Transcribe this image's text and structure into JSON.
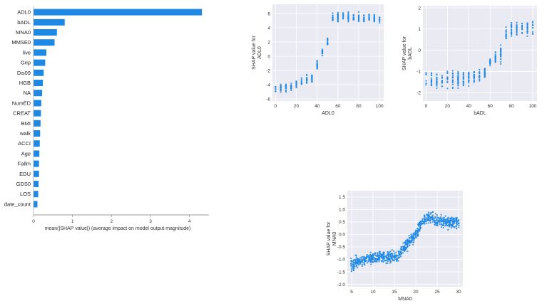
{
  "colors": {
    "bar": "#1e88e5",
    "dot": "#1e88e5",
    "panel_bg": "#eaeaf2",
    "grid": "#ffffff"
  },
  "chart_data": [
    {
      "type": "bar",
      "orientation": "horizontal",
      "categories": [
        "ADL0",
        "bADL",
        "MNA0",
        "MMSE0",
        "live",
        "Grip",
        "Dis09",
        "HGB",
        "NA",
        "NumED",
        "CREAT",
        "BMI",
        "walk",
        "ACCI",
        "Age",
        "Fallm",
        "EDU",
        "GDS0",
        "LOS",
        "date_count"
      ],
      "values": [
        4.32,
        0.8,
        0.6,
        0.54,
        0.33,
        0.3,
        0.26,
        0.24,
        0.22,
        0.2,
        0.19,
        0.18,
        0.17,
        0.16,
        0.15,
        0.14,
        0.14,
        0.13,
        0.12,
        0.1
      ],
      "xlabel": "mean(|SHAP value|) (average impact on model output magnitude)",
      "xticks": [
        "0",
        "1",
        "2",
        "3",
        "4"
      ],
      "xlim": [
        0,
        4.5
      ],
      "grid": false
    },
    {
      "type": "scatter",
      "xlabel": "ADL0",
      "ylabel": [
        "SHAP value for",
        "ADL0"
      ],
      "xlim": [
        -3,
        104
      ],
      "ylim": [
        -6.3,
        7.3
      ],
      "xticks": [
        0,
        20,
        40,
        60,
        80,
        100
      ],
      "yticks": [
        -6,
        -4,
        -2,
        0,
        2,
        4,
        6
      ],
      "grid": true,
      "trend_x": [
        0,
        5,
        10,
        15,
        20,
        25,
        30,
        35,
        40,
        45,
        50,
        55,
        60,
        65,
        70,
        75,
        80,
        85,
        90,
        95,
        100
      ],
      "trend_y": [
        -4.7,
        -4.5,
        -4.4,
        -4.2,
        -3.9,
        -3.6,
        -3.3,
        -3.0,
        -1.2,
        0.5,
        2.0,
        5.4,
        5.6,
        5.6,
        5.5,
        5.4,
        5.4,
        5.3,
        5.3,
        5.3,
        5.2
      ],
      "spread": 0.6
    },
    {
      "type": "scatter",
      "xlabel": "bADL",
      "ylabel": [
        "SHAP value for",
        "bADL"
      ],
      "xlim": [
        -3,
        104
      ],
      "ylim": [
        -2.4,
        2.1
      ],
      "xticks": [
        0,
        20,
        40,
        60,
        80,
        100
      ],
      "yticks": [
        -2,
        -1,
        0,
        1,
        2
      ],
      "grid": true,
      "trend_x": [
        0,
        5,
        10,
        15,
        20,
        25,
        30,
        35,
        40,
        45,
        50,
        55,
        60,
        65,
        70,
        75,
        80,
        85,
        90,
        95,
        100
      ],
      "trend_y": [
        -1.45,
        -1.45,
        -1.45,
        -1.45,
        -1.4,
        -1.4,
        -1.35,
        -1.35,
        -1.3,
        -1.3,
        -1.2,
        -1.1,
        -0.6,
        -0.4,
        -0.2,
        0.8,
        1.0,
        1.0,
        1.0,
        1.0,
        1.0
      ],
      "spread": 0.35
    },
    {
      "type": "scatter",
      "xlabel": "MNA0",
      "ylabel": [
        "SHAP value for",
        "MNA0"
      ],
      "xlim": [
        4,
        31
      ],
      "ylim": [
        -2.1,
        1.75
      ],
      "xticks": [
        5,
        10,
        15,
        20,
        25,
        30
      ],
      "yticks": [
        -2.0,
        -1.5,
        -1.0,
        -0.5,
        0.0,
        0.5,
        1.0,
        1.5
      ],
      "grid": true,
      "trend_x": [
        5,
        8,
        10,
        12,
        14,
        15,
        16,
        17,
        18,
        19,
        20,
        21,
        22,
        23,
        24,
        25,
        26,
        27,
        28,
        29,
        30
      ],
      "trend_y": [
        -1.2,
        -1.0,
        -0.95,
        -0.9,
        -0.9,
        -0.95,
        -0.85,
        -0.6,
        -0.4,
        -0.2,
        0.0,
        0.35,
        0.6,
        0.7,
        0.65,
        0.55,
        0.5,
        0.5,
        0.5,
        0.5,
        0.5
      ],
      "spread": 0.22
    }
  ]
}
